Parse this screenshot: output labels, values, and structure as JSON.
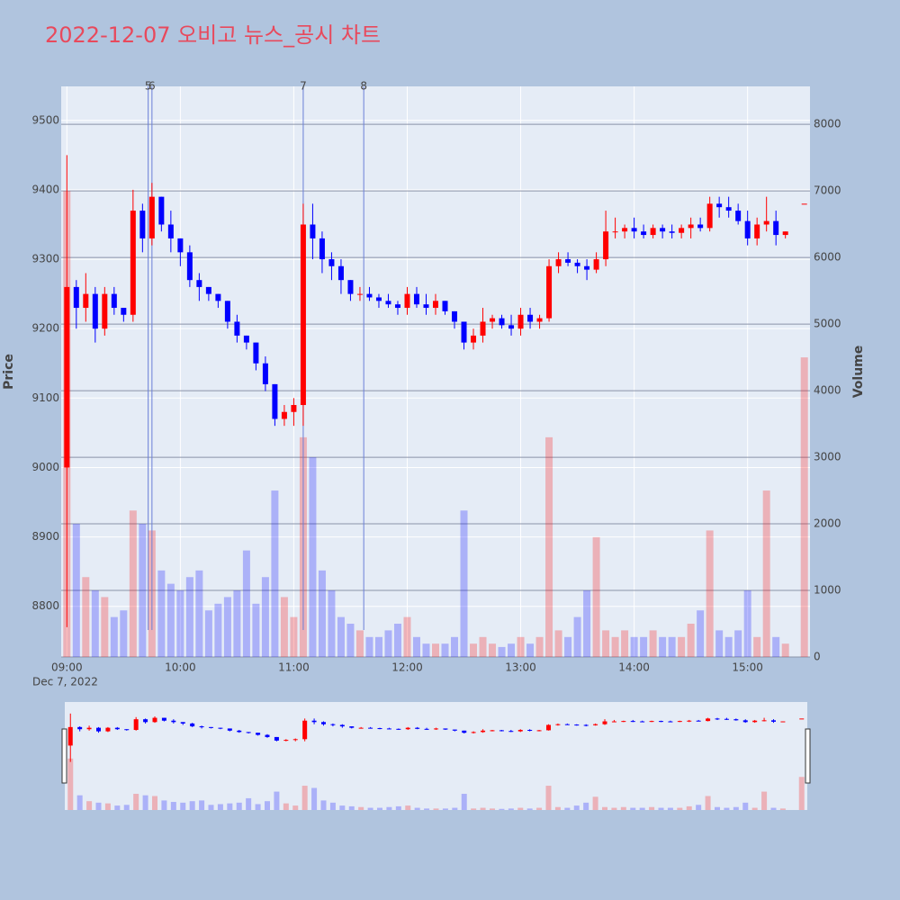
{
  "chart_data": {
    "type": "candlestick",
    "title": "2022-12-07 오비고 뉴스_공시 차트",
    "date_label": "Dec 7, 2022",
    "y_label": "Price",
    "y2_label": "Volume",
    "increasing_color": "#ff0000",
    "decreasing_color": "#0000ff",
    "x": [
      "09:00",
      "09:05",
      "09:10",
      "09:15",
      "09:20",
      "09:25",
      "09:30",
      "09:35",
      "09:40",
      "09:45",
      "09:50",
      "09:55",
      "10:00",
      "10:05",
      "10:10",
      "10:15",
      "10:20",
      "10:25",
      "10:30",
      "10:35",
      "10:40",
      "10:45",
      "10:50",
      "10:55",
      "11:00",
      "11:05",
      "11:10",
      "11:15",
      "11:20",
      "11:25",
      "11:30",
      "11:35",
      "11:40",
      "11:45",
      "11:50",
      "11:55",
      "12:00",
      "12:05",
      "12:10",
      "12:15",
      "12:20",
      "12:25",
      "12:30",
      "12:35",
      "12:40",
      "12:45",
      "12:50",
      "12:55",
      "13:00",
      "13:05",
      "13:10",
      "13:15",
      "13:20",
      "13:25",
      "13:30",
      "13:35",
      "13:40",
      "13:45",
      "13:50",
      "13:55",
      "14:00",
      "14:05",
      "14:10",
      "14:15",
      "14:20",
      "14:25",
      "14:30",
      "14:35",
      "14:40",
      "14:45",
      "14:50",
      "14:55",
      "15:00",
      "15:05",
      "15:10",
      "15:15",
      "15:20",
      "15:30"
    ],
    "open": [
      9000,
      9260,
      9230,
      9250,
      9200,
      9250,
      9230,
      9220,
      9370,
      9330,
      9390,
      9350,
      9330,
      9310,
      9270,
      9260,
      9250,
      9240,
      9210,
      9190,
      9180,
      9150,
      9120,
      9070,
      9080,
      9090,
      9350,
      9330,
      9300,
      9290,
      9270,
      9250,
      9250,
      9245,
      9240,
      9235,
      9230,
      9250,
      9235,
      9230,
      9240,
      9225,
      9210,
      9180,
      9190,
      9210,
      9215,
      9205,
      9200,
      9220,
      9210,
      9215,
      9290,
      9300,
      9295,
      9290,
      9285,
      9300,
      9340,
      9340,
      9345,
      9340,
      9335,
      9345,
      9340,
      9338,
      9345,
      9350,
      9345,
      9380,
      9375,
      9370,
      9355,
      9330,
      9350,
      9355,
      9335,
      9380
    ],
    "high": [
      9450,
      9270,
      9280,
      9260,
      9260,
      9260,
      9230,
      9400,
      9380,
      9410,
      9390,
      9370,
      9330,
      9320,
      9280,
      9260,
      9250,
      9240,
      9220,
      9190,
      9180,
      9160,
      9120,
      9090,
      9100,
      9380,
      9380,
      9340,
      9310,
      9300,
      9270,
      9260,
      9260,
      9250,
      9250,
      9240,
      9260,
      9260,
      9250,
      9250,
      9240,
      9225,
      9210,
      9200,
      9230,
      9220,
      9220,
      9220,
      9230,
      9230,
      9220,
      9300,
      9310,
      9310,
      9300,
      9300,
      9310,
      9370,
      9360,
      9350,
      9360,
      9350,
      9350,
      9350,
      9350,
      9350,
      9360,
      9360,
      9390,
      9390,
      9390,
      9380,
      9370,
      9360,
      9390,
      9370,
      9340,
      9380
    ],
    "low": [
      8770,
      9200,
      9210,
      9180,
      9190,
      9220,
      9210,
      9210,
      9310,
      9320,
      9340,
      9310,
      9290,
      9260,
      9240,
      9240,
      9230,
      9200,
      9180,
      9170,
      9140,
      9110,
      9060,
      9060,
      9060,
      9060,
      9300,
      9280,
      9270,
      9250,
      9240,
      9240,
      9240,
      9230,
      9230,
      9220,
      9220,
      9230,
      9220,
      9220,
      9220,
      9200,
      9170,
      9170,
      9180,
      9200,
      9200,
      9190,
      9190,
      9200,
      9200,
      9210,
      9280,
      9290,
      9280,
      9270,
      9280,
      9290,
      9330,
      9330,
      9330,
      9330,
      9330,
      9330,
      9330,
      9330,
      9330,
      9340,
      9340,
      9360,
      9360,
      9350,
      9320,
      9320,
      9340,
      9320,
      9330,
      9380
    ],
    "close": [
      9260,
      9230,
      9250,
      9200,
      9250,
      9230,
      9220,
      9370,
      9330,
      9390,
      9350,
      9330,
      9310,
      9270,
      9260,
      9250,
      9240,
      9210,
      9190,
      9180,
      9150,
      9120,
      9070,
      9080,
      9090,
      9350,
      9330,
      9300,
      9290,
      9270,
      9250,
      9250,
      9245,
      9240,
      9235,
      9230,
      9250,
      9235,
      9230,
      9240,
      9225,
      9210,
      9180,
      9190,
      9210,
      9215,
      9205,
      9200,
      9220,
      9210,
      9215,
      9290,
      9300,
      9295,
      9290,
      9285,
      9300,
      9340,
      9340,
      9345,
      9340,
      9335,
      9345,
      9340,
      9338,
      9345,
      9350,
      9345,
      9380,
      9375,
      9370,
      9355,
      9330,
      9350,
      9355,
      9335,
      9340,
      9380
    ],
    "volume": [
      7000,
      2000,
      1200,
      1000,
      900,
      600,
      700,
      2200,
      2000,
      1900,
      1300,
      1100,
      1000,
      1200,
      1300,
      700,
      800,
      900,
      1000,
      1600,
      800,
      1200,
      2500,
      900,
      600,
      3300,
      3000,
      1300,
      1000,
      600,
      500,
      400,
      300,
      300,
      400,
      500,
      600,
      300,
      200,
      200,
      200,
      300,
      2200,
      200,
      300,
      200,
      150,
      200,
      300,
      200,
      300,
      3300,
      400,
      300,
      600,
      1000,
      1800,
      400,
      300,
      400,
      300,
      300,
      400,
      300,
      300,
      300,
      500,
      700,
      1900,
      400,
      300,
      400,
      1000,
      300,
      2500,
      300,
      200,
      4500
    ],
    "xlim": [
      "08:57",
      "15:33"
    ],
    "xticks": [
      "09:00",
      "10:00",
      "11:00",
      "12:00",
      "13:00",
      "14:00",
      "15:00"
    ],
    "ylim": [
      8727,
      9549
    ],
    "yticks": [
      8800,
      8900,
      9000,
      9100,
      9200,
      9300,
      9400,
      9500
    ],
    "y2lim": [
      0,
      8570
    ],
    "y2ticks": [
      0,
      1000,
      2000,
      3000,
      4000,
      5000,
      6000,
      7000,
      8000
    ],
    "grid": true,
    "events": [
      {
        "label": "5",
        "x": "09:43"
      },
      {
        "label": "6",
        "x": "09:45"
      },
      {
        "label": "7",
        "x": "11:05"
      },
      {
        "label": "8",
        "x": "11:37"
      }
    ]
  }
}
